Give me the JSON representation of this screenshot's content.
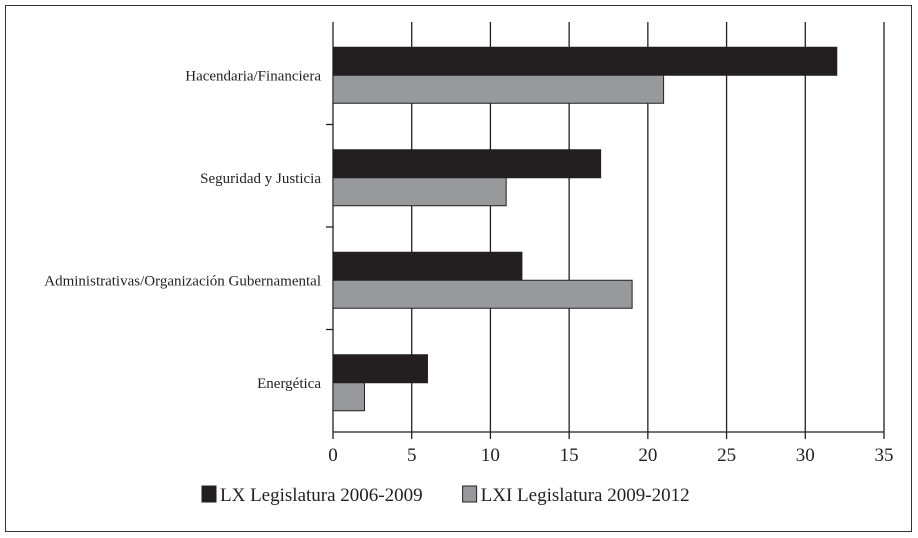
{
  "chart_data": {
    "type": "bar",
    "orientation": "horizontal",
    "title": "",
    "xlabel": "",
    "ylabel": "",
    "categories": [
      "Hacendaria/Financiera",
      "Seguridad y Justicia",
      "Administrativas/Organización Gubernamental",
      "Energética"
    ],
    "series": [
      {
        "name": "LX Legislatura 2006-2009",
        "color": "#231f20",
        "values": [
          32,
          17,
          12,
          6
        ]
      },
      {
        "name": "LXI Legislatura 2009-2012",
        "color": "#98999b",
        "values": [
          21,
          11,
          19,
          2
        ]
      }
    ],
    "xlim": [
      0,
      35
    ],
    "xticks": [
      "0",
      "5",
      "10",
      "15",
      "20",
      "25",
      "30",
      "35"
    ],
    "grid": "vertical",
    "legend": "bottom"
  }
}
